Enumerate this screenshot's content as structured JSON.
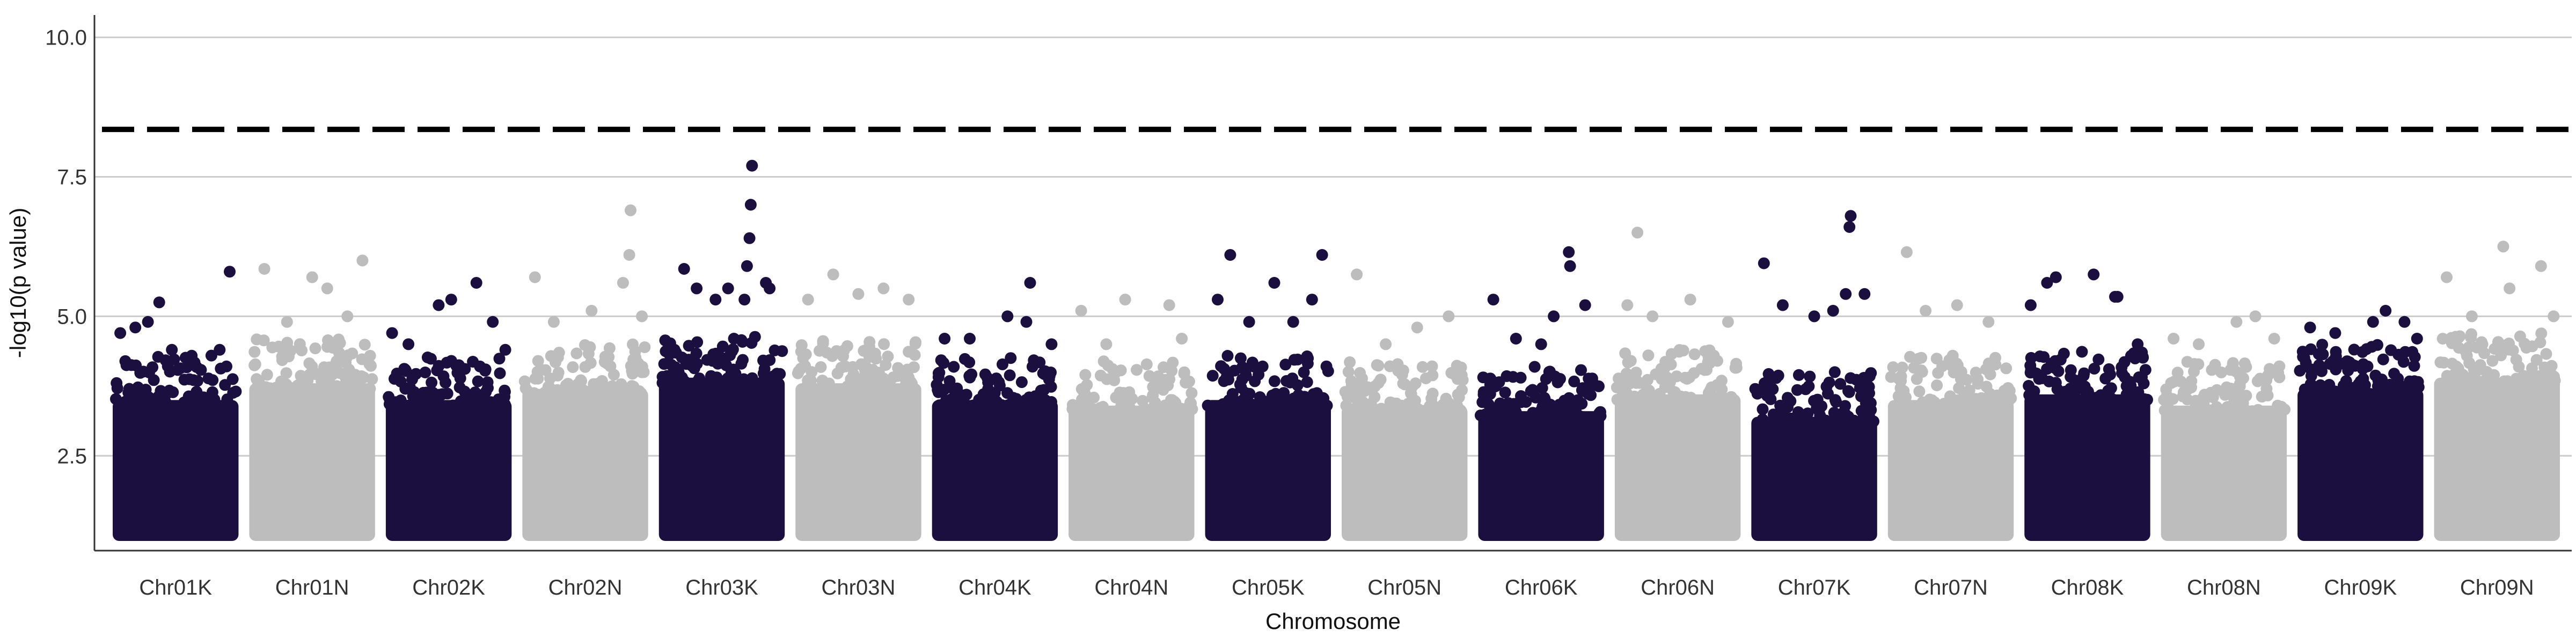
{
  "chart_data": {
    "type": "scatter",
    "subtype": "manhattan",
    "title": "",
    "xlabel": "Chromosome",
    "ylabel": "-log10(p value)",
    "ylim": [
      0.8,
      10.4
    ],
    "yticks": [
      2.5,
      5.0,
      7.5,
      10.0
    ],
    "ytick_labels": [
      "2.5",
      "5.0",
      "7.5",
      "10.0"
    ],
    "grid": "horizontal-major",
    "threshold": 8.35,
    "threshold_style": "dashed",
    "colors": {
      "odd": "#1b0f40",
      "even": "#bdbdbd",
      "threshold": "#000000",
      "grid": "#cccccc",
      "axis": "#333333"
    },
    "categories": [
      "Chr01K",
      "Chr01N",
      "Chr02K",
      "Chr02N",
      "Chr03K",
      "Chr03N",
      "Chr04K",
      "Chr04N",
      "Chr05K",
      "Chr05N",
      "Chr06K",
      "Chr06N",
      "Chr07K",
      "Chr07N",
      "Chr08K",
      "Chr08N",
      "Chr09K",
      "Chr09N"
    ],
    "series": [
      {
        "chromosome": "Chr01K",
        "body_max": 4.1,
        "points": [
          [
            0.06,
            4.7
          ],
          [
            0.18,
            4.8
          ],
          [
            0.28,
            4.9
          ],
          [
            0.37,
            5.25
          ],
          [
            0.47,
            4.4
          ],
          [
            0.62,
            4.25
          ],
          [
            0.85,
            4.4
          ],
          [
            0.93,
            5.8
          ]
        ]
      },
      {
        "chromosome": "Chr01N",
        "body_max": 4.4,
        "points": [
          [
            0.12,
            5.85
          ],
          [
            0.3,
            4.9
          ],
          [
            0.5,
            5.7
          ],
          [
            0.62,
            5.5
          ],
          [
            0.78,
            5.0
          ],
          [
            0.9,
            6.0
          ]
        ]
      },
      {
        "chromosome": "Chr02K",
        "body_max": 4.1,
        "points": [
          [
            0.05,
            4.7
          ],
          [
            0.18,
            4.5
          ],
          [
            0.42,
            5.2
          ],
          [
            0.52,
            5.3
          ],
          [
            0.72,
            5.6
          ],
          [
            0.85,
            4.9
          ],
          [
            0.95,
            4.4
          ]
        ]
      },
      {
        "chromosome": "Chr02N",
        "body_max": 4.3,
        "points": [
          [
            0.1,
            5.7
          ],
          [
            0.25,
            4.9
          ],
          [
            0.55,
            5.1
          ],
          [
            0.8,
            5.6
          ],
          [
            0.85,
            6.1
          ],
          [
            0.86,
            6.9
          ],
          [
            0.95,
            5.0
          ]
        ]
      },
      {
        "chromosome": "Chr03K",
        "body_max": 4.5,
        "points": [
          [
            0.2,
            5.85
          ],
          [
            0.3,
            5.5
          ],
          [
            0.45,
            5.3
          ],
          [
            0.55,
            5.5
          ],
          [
            0.68,
            5.3
          ],
          [
            0.7,
            5.9
          ],
          [
            0.72,
            6.4
          ],
          [
            0.73,
            7.0
          ],
          [
            0.74,
            7.7
          ],
          [
            0.85,
            5.6
          ],
          [
            0.88,
            5.5
          ]
        ]
      },
      {
        "chromosome": "Chr03N",
        "body_max": 4.4,
        "points": [
          [
            0.1,
            5.3
          ],
          [
            0.3,
            5.75
          ],
          [
            0.5,
            5.4
          ],
          [
            0.7,
            5.5
          ],
          [
            0.9,
            5.3
          ]
        ]
      },
      {
        "chromosome": "Chr04K",
        "body_max": 4.1,
        "points": [
          [
            0.1,
            4.6
          ],
          [
            0.3,
            4.6
          ],
          [
            0.6,
            5.0
          ],
          [
            0.75,
            4.9
          ],
          [
            0.78,
            5.6
          ],
          [
            0.95,
            4.5
          ]
        ]
      },
      {
        "chromosome": "Chr04N",
        "body_max": 4.0,
        "points": [
          [
            0.1,
            5.1
          ],
          [
            0.3,
            4.5
          ],
          [
            0.45,
            5.3
          ],
          [
            0.8,
            5.2
          ],
          [
            0.9,
            4.6
          ]
        ]
      },
      {
        "chromosome": "Chr05K",
        "body_max": 4.1,
        "points": [
          [
            0.1,
            5.3
          ],
          [
            0.2,
            6.1
          ],
          [
            0.35,
            4.9
          ],
          [
            0.55,
            5.6
          ],
          [
            0.7,
            4.9
          ],
          [
            0.85,
            5.3
          ],
          [
            0.93,
            6.1
          ]
        ]
      },
      {
        "chromosome": "Chr05N",
        "body_max": 4.0,
        "points": [
          [
            0.12,
            5.75
          ],
          [
            0.35,
            4.5
          ],
          [
            0.6,
            4.8
          ],
          [
            0.85,
            5.0
          ]
        ]
      },
      {
        "chromosome": "Chr06K",
        "body_max": 3.9,
        "points": [
          [
            0.12,
            5.3
          ],
          [
            0.3,
            4.6
          ],
          [
            0.5,
            4.5
          ],
          [
            0.6,
            5.0
          ],
          [
            0.72,
            6.15
          ],
          [
            0.73,
            5.9
          ],
          [
            0.85,
            5.2
          ]
        ]
      },
      {
        "chromosome": "Chr06N",
        "body_max": 4.2,
        "points": [
          [
            0.1,
            5.2
          ],
          [
            0.18,
            6.5
          ],
          [
            0.3,
            5.0
          ],
          [
            0.6,
            5.3
          ],
          [
            0.9,
            4.9
          ]
        ]
      },
      {
        "chromosome": "Chr07K",
        "body_max": 3.8,
        "points": [
          [
            0.1,
            5.95
          ],
          [
            0.25,
            5.2
          ],
          [
            0.5,
            5.0
          ],
          [
            0.65,
            5.1
          ],
          [
            0.75,
            5.4
          ],
          [
            0.78,
            6.6
          ],
          [
            0.79,
            6.8
          ],
          [
            0.9,
            5.4
          ]
        ]
      },
      {
        "chromosome": "Chr07N",
        "body_max": 4.1,
        "points": [
          [
            0.15,
            6.15
          ],
          [
            0.3,
            5.1
          ],
          [
            0.55,
            5.2
          ],
          [
            0.8,
            4.9
          ]
        ]
      },
      {
        "chromosome": "Chr08K",
        "body_max": 4.2,
        "points": [
          [
            0.05,
            5.2
          ],
          [
            0.18,
            5.6
          ],
          [
            0.25,
            5.7
          ],
          [
            0.55,
            5.75
          ],
          [
            0.72,
            5.35
          ],
          [
            0.74,
            5.35
          ],
          [
            0.9,
            4.5
          ]
        ]
      },
      {
        "chromosome": "Chr08N",
        "body_max": 4.0,
        "points": [
          [
            0.1,
            4.6
          ],
          [
            0.3,
            4.5
          ],
          [
            0.6,
            4.9
          ],
          [
            0.75,
            5.0
          ],
          [
            0.9,
            4.6
          ]
        ]
      },
      {
        "chromosome": "Chr09K",
        "body_max": 4.3,
        "points": [
          [
            0.1,
            4.8
          ],
          [
            0.3,
            4.7
          ],
          [
            0.6,
            4.9
          ],
          [
            0.7,
            5.1
          ],
          [
            0.85,
            4.9
          ],
          [
            0.95,
            4.6
          ]
        ]
      },
      {
        "chromosome": "Chr09N",
        "body_max": 4.5,
        "points": [
          [
            0.1,
            5.7
          ],
          [
            0.3,
            5.0
          ],
          [
            0.55,
            6.25
          ],
          [
            0.6,
            5.5
          ],
          [
            0.85,
            5.9
          ],
          [
            0.95,
            5.0
          ]
        ]
      }
    ]
  }
}
